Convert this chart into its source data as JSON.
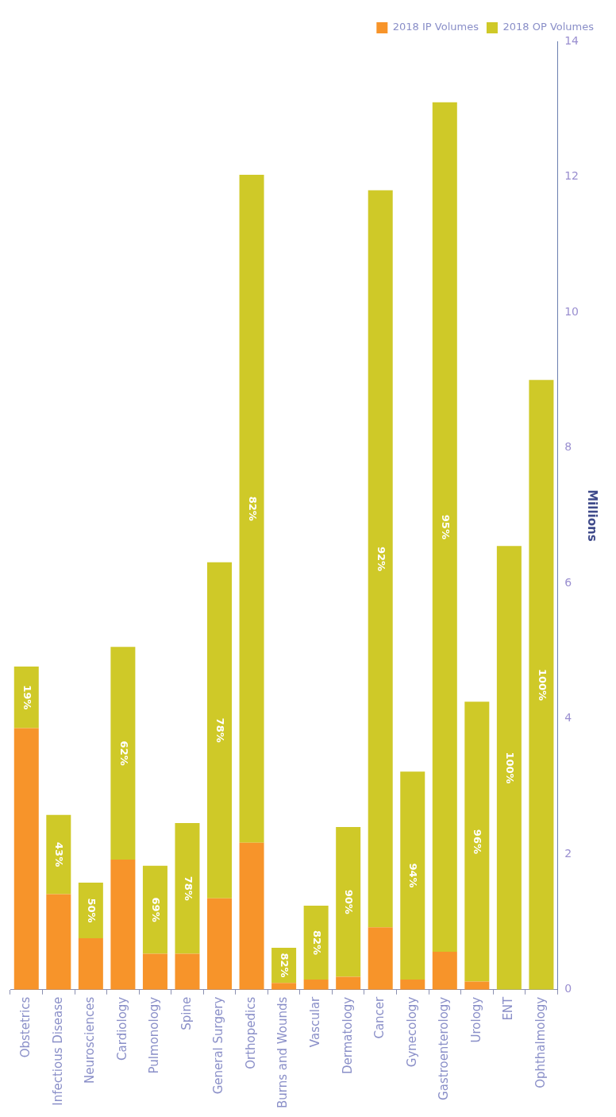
{
  "chart_data": {
    "type": "bar",
    "stacked": true,
    "ylabel": "Millions",
    "categories": [
      "Obstetrics",
      "Infectious Disease",
      "Neurosciences",
      "Cardiology",
      "Pulmonology",
      "Spine",
      "General Surgery",
      "Orthopedics",
      "Burns and Wounds",
      "Vascular",
      "Dermatology",
      "Cancer",
      "Gynecology",
      "Gastroenterology",
      "Urology",
      "ENT",
      "Ophthalmology"
    ],
    "series": [
      {
        "name": "2018 IP Volumes",
        "color": "#f7942a",
        "values": [
          3.86,
          1.41,
          0.76,
          1.92,
          0.53,
          0.53,
          1.35,
          2.17,
          0.1,
          0.15,
          0.19,
          0.92,
          0.15,
          0.56,
          0.12,
          0,
          0
        ]
      },
      {
        "name": "2018 OP Volumes",
        "color": "#cfc928",
        "values": [
          0.91,
          1.17,
          0.82,
          3.14,
          1.3,
          1.93,
          4.96,
          9.86,
          0.52,
          1.09,
          2.21,
          10.88,
          3.07,
          12.54,
          4.13,
          6.55,
          9.0
        ]
      }
    ],
    "annotations": [
      "19%",
      "43%",
      "50%",
      "62%",
      "69%",
      "78%",
      "78%",
      "82%",
      "82%",
      "82%",
      "90%",
      "92%",
      "94%",
      "95%",
      "96%",
      "100%",
      "100%"
    ],
    "ylim": [
      0,
      14
    ],
    "yticks": [
      0,
      2,
      4,
      6,
      8,
      10,
      12,
      14
    ],
    "legend": "top right"
  }
}
